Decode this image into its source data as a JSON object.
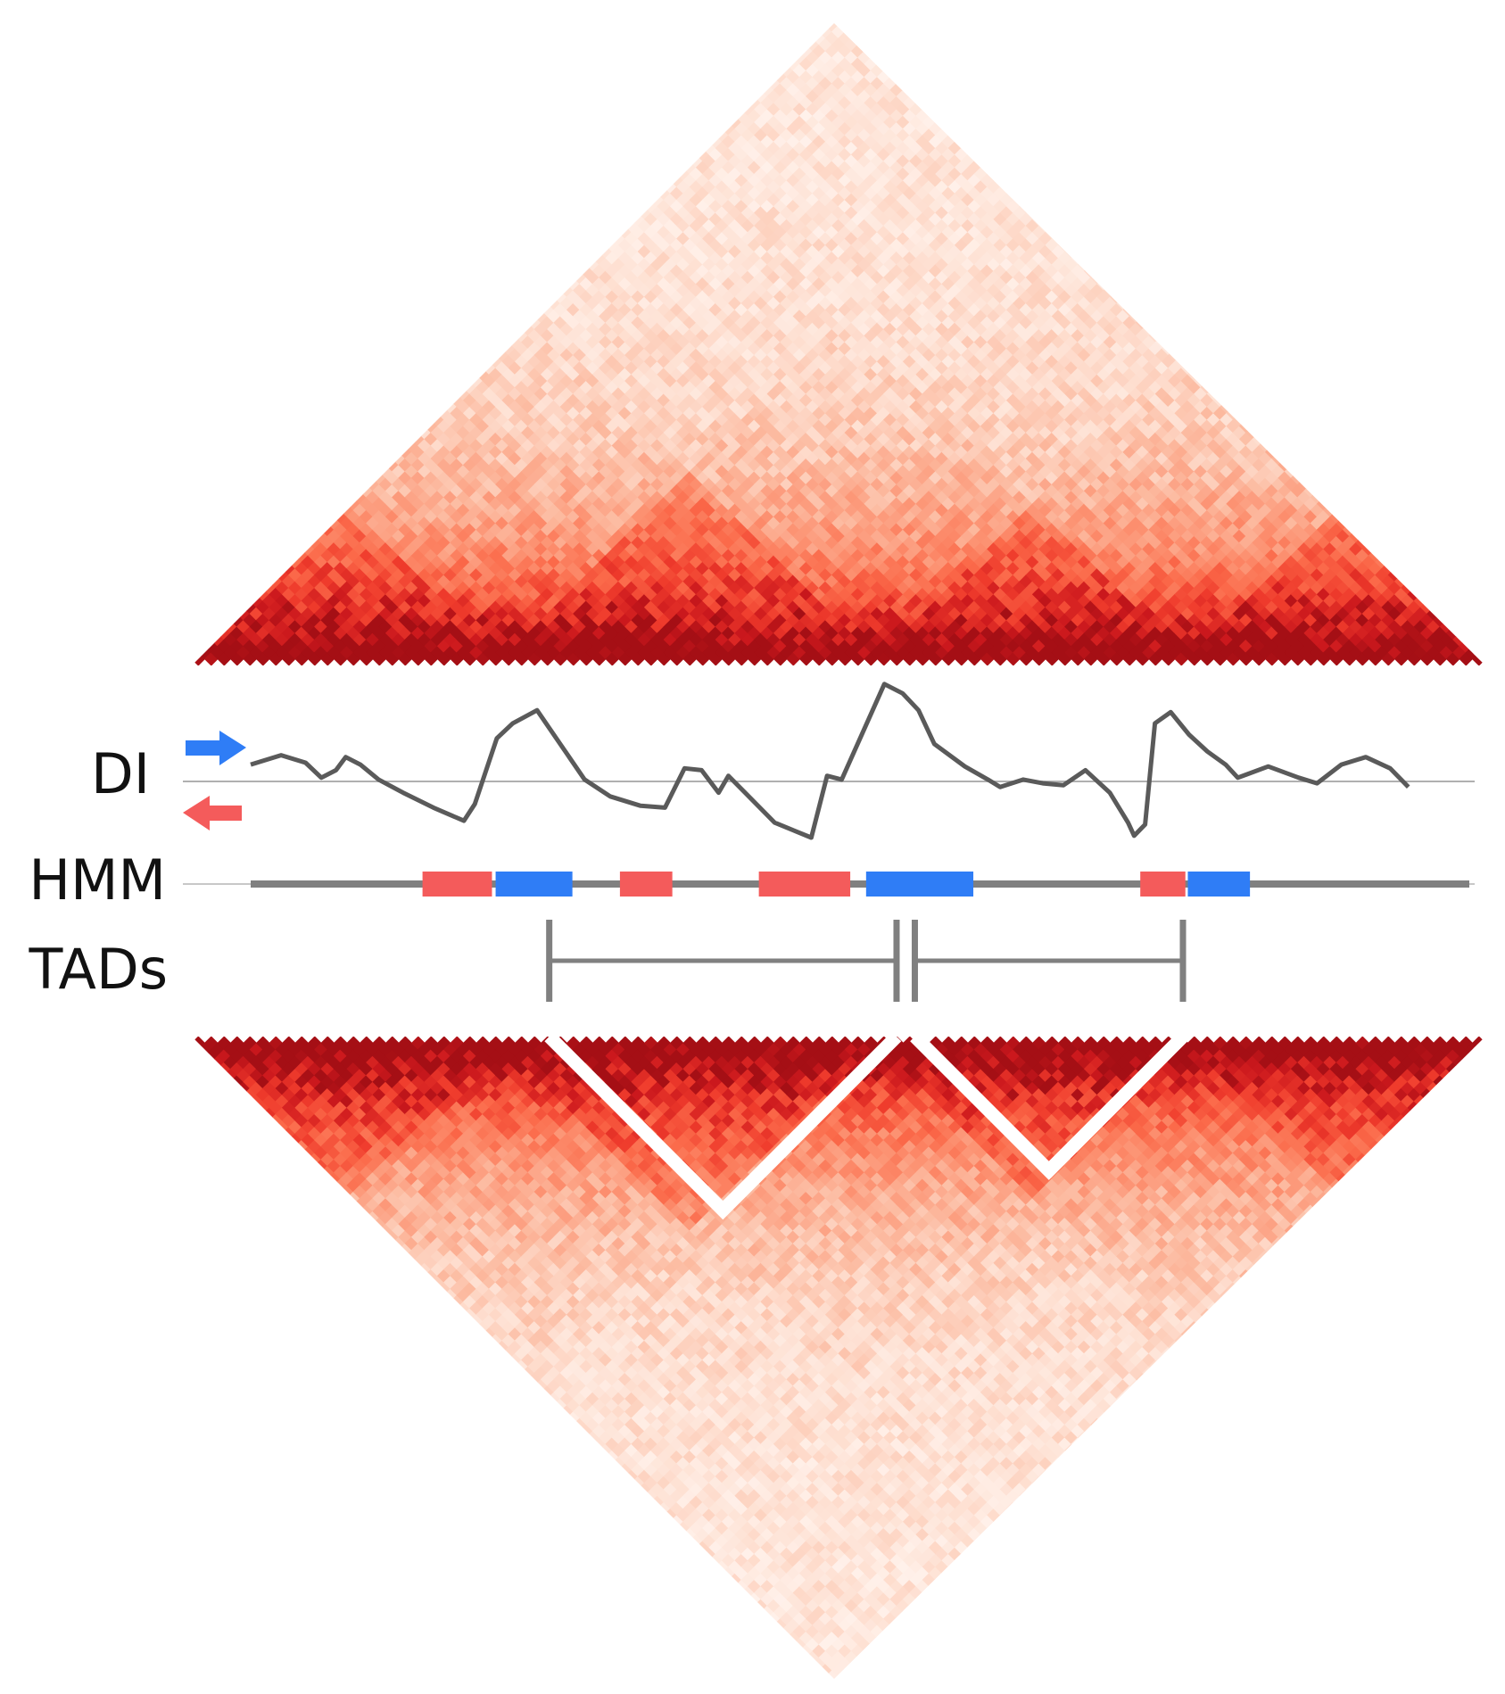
{
  "labels": {
    "di": "DI",
    "hmm": "HMM",
    "tads": "TADs"
  },
  "colors": {
    "heat_low": "#fff5f0",
    "heat_high": "#a50f15",
    "forward_blue": "#2f7df6",
    "reverse_red": "#f45b5b",
    "track_gray": "#808080",
    "di_line": "#5a5a5a",
    "baseline": "#b0b0b0"
  },
  "icons": {
    "forward": "right-arrow-icon",
    "reverse": "left-arrow-icon"
  },
  "region": {
    "bins": 100
  },
  "di_track": {
    "description_points": [
      [
        0,
        0.45
      ],
      [
        2.5,
        0.7
      ],
      [
        4.5,
        0.5
      ],
      [
        5.8,
        0.1
      ],
      [
        7,
        0.3
      ],
      [
        7.8,
        0.65
      ],
      [
        9,
        0.45
      ],
      [
        10.5,
        0.05
      ],
      [
        12.5,
        -0.3
      ],
      [
        15,
        -0.7
      ],
      [
        17.5,
        -1.05
      ],
      [
        18.4,
        -0.6
      ],
      [
        20.2,
        1.15
      ],
      [
        21.5,
        1.55
      ],
      [
        23.5,
        1.9
      ],
      [
        27.4,
        0.05
      ],
      [
        29.5,
        -0.4
      ],
      [
        32,
        -0.65
      ],
      [
        34,
        -0.7
      ],
      [
        35.6,
        0.35
      ],
      [
        37,
        0.3
      ],
      [
        38.4,
        -0.3
      ],
      [
        39.2,
        0.15
      ],
      [
        43,
        -1.1
      ],
      [
        46,
        -1.5
      ],
      [
        47.3,
        0.15
      ],
      [
        48.5,
        0.05
      ],
      [
        52,
        2.6
      ],
      [
        53.5,
        2.35
      ],
      [
        54.8,
        1.9
      ],
      [
        56.1,
        1.0
      ],
      [
        58.6,
        0.4
      ],
      [
        60.5,
        0.05
      ],
      [
        61.5,
        -0.15
      ],
      [
        63.4,
        0.05
      ],
      [
        65,
        -0.05
      ],
      [
        66.7,
        -0.1
      ],
      [
        68.5,
        0.3
      ],
      [
        70.5,
        -0.3
      ],
      [
        72,
        -1.1
      ],
      [
        72.5,
        -1.45
      ],
      [
        73.4,
        -1.15
      ],
      [
        74.2,
        1.55
      ],
      [
        75.5,
        1.85
      ],
      [
        77,
        1.25
      ],
      [
        78.5,
        0.8
      ],
      [
        80,
        0.45
      ],
      [
        81,
        0.1
      ],
      [
        83.5,
        0.4
      ],
      [
        86,
        0.1
      ],
      [
        87.5,
        -0.05
      ],
      [
        89.5,
        0.45
      ],
      [
        91.5,
        0.65
      ],
      [
        93.5,
        0.35
      ],
      [
        95,
        -0.15
      ]
    ]
  },
  "hmm_track": {
    "segments": [
      {
        "state": "reverse",
        "start": 14.1,
        "end": 19.8
      },
      {
        "state": "forward",
        "start": 20.1,
        "end": 26.4
      },
      {
        "state": "reverse",
        "start": 30.3,
        "end": 34.6
      },
      {
        "state": "reverse",
        "start": 41.7,
        "end": 49.2
      },
      {
        "state": "forward",
        "start": 50.5,
        "end": 59.3
      },
      {
        "state": "reverse",
        "start": 73.0,
        "end": 76.7
      },
      {
        "state": "forward",
        "start": 76.9,
        "end": 82.0
      }
    ]
  },
  "tads": [
    {
      "start": 24.5,
      "end": 53.0
    },
    {
      "start": 54.5,
      "end": 76.5
    }
  ]
}
